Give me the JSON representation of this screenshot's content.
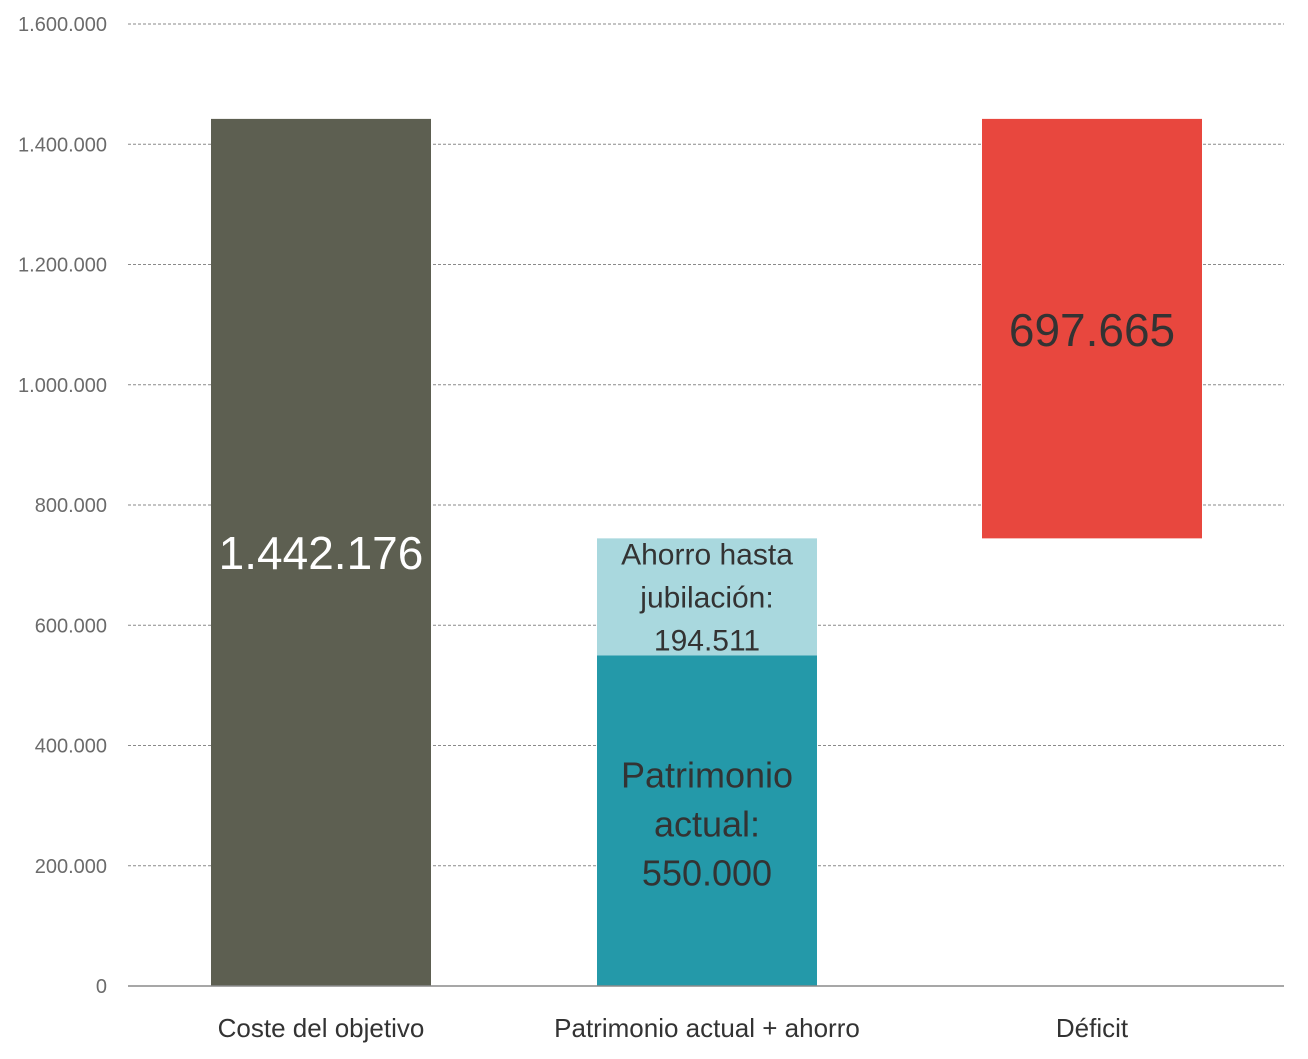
{
  "chart_data": {
    "type": "bar",
    "subtype": "waterfall",
    "categories": [
      "Coste del objetivo",
      "Patrimonio actual + ahorro",
      "Déficit"
    ],
    "ylim": [
      0,
      1600000
    ],
    "yticks": [
      0,
      200000,
      400000,
      600000,
      800000,
      1000000,
      1200000,
      1400000,
      1600000
    ],
    "ytick_labels": [
      "0",
      "200.000",
      "400.000",
      "600.000",
      "800.000",
      "1.000.000",
      "1.200.000",
      "1.400.000",
      "1.600.000"
    ],
    "grid": true,
    "segments": [
      {
        "category_index": 0,
        "base": 0,
        "value": 1442176,
        "color": "#5d5f51",
        "label_lines": [
          "1.442.176"
        ],
        "label_color": "#ffffff"
      },
      {
        "category_index": 1,
        "base": 0,
        "value": 550000,
        "color": "#2499a9",
        "label_lines": [
          "Patrimonio",
          "actual:",
          "550.000"
        ],
        "label_color": "#333333"
      },
      {
        "category_index": 1,
        "base": 550000,
        "value": 194511,
        "color": "#a9d8de",
        "label_lines": [
          "Ahorro hasta",
          "jubilación:",
          "194.511"
        ],
        "label_color": "#333333"
      },
      {
        "category_index": 2,
        "base": 744511,
        "value": 697665,
        "color": "#e8473e",
        "label_lines": [
          "697.665"
        ],
        "label_color": "#333333"
      }
    ]
  }
}
